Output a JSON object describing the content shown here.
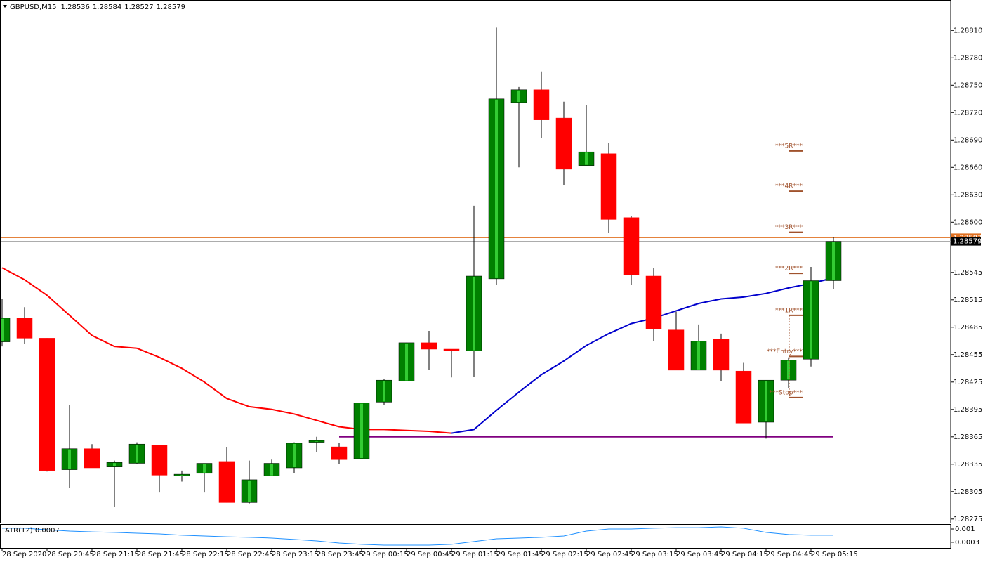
{
  "chart_data": {
    "type": "candlestick",
    "symbol": "GBPUSD,M15",
    "categories": [
      "28 Sep 2020",
      null,
      "28 Sep 20:45",
      null,
      "28 Sep 21:15",
      null,
      "28 Sep 21:45",
      null,
      "28 Sep 22:15",
      null,
      "28 Sep 22:45",
      null,
      "28 Sep 23:15",
      null,
      "28 Sep 23:45",
      null,
      "29 Sep 00:15",
      null,
      "29 Sep 00:45",
      null,
      "29 Sep 01:15",
      null,
      "29 Sep 01:45",
      null,
      "29 Sep 02:15",
      null,
      "29 Sep 02:45",
      null,
      "29 Sep 03:15",
      null,
      "29 Sep 03:45",
      null,
      "29 Sep 04:15",
      null,
      "29 Sep 04:45",
      null,
      "29 Sep 05:15",
      null
    ],
    "candles": [
      {
        "open": 1.28469,
        "high": 1.28516,
        "low": 1.28464,
        "close": 1.28495
      },
      {
        "open": 1.28495,
        "high": 1.28507,
        "low": 1.28467,
        "close": 1.28473
      },
      {
        "open": 1.28473,
        "high": 1.28473,
        "low": 1.28327,
        "close": 1.28328
      },
      {
        "open": 1.28329,
        "high": 1.284,
        "low": 1.28309,
        "close": 1.28352
      },
      {
        "open": 1.28352,
        "high": 1.28357,
        "low": 1.28331,
        "close": 1.28331
      },
      {
        "open": 1.28332,
        "high": 1.28339,
        "low": 1.28288,
        "close": 1.28337
      },
      {
        "open": 1.28336,
        "high": 1.28359,
        "low": 1.28335,
        "close": 1.28357
      },
      {
        "open": 1.28356,
        "high": 1.28356,
        "low": 1.28304,
        "close": 1.28323
      },
      {
        "open": 1.28322,
        "high": 1.28328,
        "low": 1.28316,
        "close": 1.28324
      },
      {
        "open": 1.28325,
        "high": 1.28336,
        "low": 1.28304,
        "close": 1.28336
      },
      {
        "open": 1.28338,
        "high": 1.28354,
        "low": 1.28293,
        "close": 1.28293
      },
      {
        "open": 1.28293,
        "high": 1.28339,
        "low": 1.28292,
        "close": 1.28318
      },
      {
        "open": 1.28322,
        "high": 1.2834,
        "low": 1.28322,
        "close": 1.28336
      },
      {
        "open": 1.28331,
        "high": 1.28359,
        "low": 1.28325,
        "close": 1.28358
      },
      {
        "open": 1.28359,
        "high": 1.28365,
        "low": 1.28348,
        "close": 1.28361
      },
      {
        "open": 1.28354,
        "high": 1.28358,
        "low": 1.28335,
        "close": 1.2834
      },
      {
        "open": 1.28341,
        "high": 1.28402,
        "low": 1.28341,
        "close": 1.28402
      },
      {
        "open": 1.28403,
        "high": 1.28428,
        "low": 1.284,
        "close": 1.28427
      },
      {
        "open": 1.28426,
        "high": 1.28468,
        "low": 1.28426,
        "close": 1.28468
      },
      {
        "open": 1.28468,
        "high": 1.28481,
        "low": 1.28438,
        "close": 1.28461
      },
      {
        "open": 1.28461,
        "high": 1.28461,
        "low": 1.2843,
        "close": 1.28459
      },
      {
        "open": 1.28459,
        "high": 1.28618,
        "low": 1.28431,
        "close": 1.28541
      },
      {
        "open": 1.28538,
        "high": 1.28813,
        "low": 1.28531,
        "close": 1.28735
      },
      {
        "open": 1.28731,
        "high": 1.28748,
        "low": 1.2866,
        "close": 1.28745
      },
      {
        "open": 1.28745,
        "high": 1.28765,
        "low": 1.28692,
        "close": 1.28712
      },
      {
        "open": 1.28714,
        "high": 1.28732,
        "low": 1.28641,
        "close": 1.28658
      },
      {
        "open": 1.28662,
        "high": 1.28728,
        "low": 1.28662,
        "close": 1.28677
      },
      {
        "open": 1.28675,
        "high": 1.28687,
        "low": 1.28588,
        "close": 1.28603
      },
      {
        "open": 1.28605,
        "high": 1.28607,
        "low": 1.28531,
        "close": 1.28542
      },
      {
        "open": 1.28541,
        "high": 1.2855,
        "low": 1.2847,
        "close": 1.28483
      },
      {
        "open": 1.28482,
        "high": 1.28502,
        "low": 1.28438,
        "close": 1.28438
      },
      {
        "open": 1.28438,
        "high": 1.28488,
        "low": 1.28438,
        "close": 1.2847
      },
      {
        "open": 1.28472,
        "high": 1.28478,
        "low": 1.28426,
        "close": 1.28438
      },
      {
        "open": 1.28437,
        "high": 1.28446,
        "low": 1.2838,
        "close": 1.2838
      },
      {
        "open": 1.28381,
        "high": 1.28427,
        "low": 1.28363,
        "close": 1.28427
      },
      {
        "open": 1.28427,
        "high": 1.28452,
        "low": 1.28418,
        "close": 1.28449
      },
      {
        "open": 1.2845,
        "high": 1.28551,
        "low": 1.28442,
        "close": 1.28536
      },
      {
        "open": 1.28536,
        "high": 1.28584,
        "low": 1.28527,
        "close": 1.28579
      }
    ],
    "up_color": "#008000",
    "up_highlight": "#33cc33",
    "down_color": "#ff0000",
    "ylim": [
      1.28271,
      1.28841
    ],
    "yticks": [
      {
        "value": 1.2881,
        "label": "1.28810"
      },
      {
        "value": 1.2878,
        "label": "1.28780"
      },
      {
        "value": 1.2875,
        "label": "1.28750"
      },
      {
        "value": 1.2872,
        "label": "1.28720"
      },
      {
        "value": 1.2869,
        "label": "1.28690"
      },
      {
        "value": 1.2866,
        "label": "1.28660"
      },
      {
        "value": 1.2863,
        "label": "1.28630"
      },
      {
        "value": 1.286,
        "label": "1.28600"
      },
      1.28545,
      1.28515,
      1.28485,
      1.28455,
      1.28425,
      1.28395,
      1.28365,
      1.28335,
      1.28305,
      1.28275
    ],
    "lines": [
      {
        "color": "#ff0000",
        "values": [
          1.2855,
          1.28537,
          1.2852,
          1.28498,
          1.28476,
          1.28464,
          1.28462,
          1.28452,
          1.2844,
          1.28425,
          1.28407,
          1.28398,
          1.28395,
          1.2839,
          1.28383,
          1.28376,
          1.28373,
          1.28373,
          1.28372,
          1.28371,
          1.28369,
          null,
          null,
          null,
          null,
          null,
          null,
          null,
          null,
          null,
          null,
          null,
          null,
          null,
          null,
          null,
          null,
          null
        ]
      },
      {
        "color": "#0000cc",
        "values": [
          null,
          null,
          null,
          null,
          null,
          null,
          null,
          null,
          null,
          null,
          null,
          null,
          null,
          null,
          null,
          null,
          null,
          null,
          null,
          null,
          1.28369,
          1.28373,
          1.28394,
          1.28414,
          1.28433,
          1.28448,
          1.28465,
          1.28478,
          1.28489,
          1.28495,
          1.28503,
          1.28511,
          1.28516,
          1.28518,
          1.28522,
          1.28528,
          1.28533,
          1.28539
        ]
      },
      {
        "color": "#800080",
        "values": [
          null,
          null,
          null,
          null,
          null,
          null,
          null,
          null,
          null,
          null,
          null,
          null,
          null,
          null,
          null,
          1.28365,
          1.28365,
          1.28365,
          1.28365,
          1.28365,
          1.28365,
          1.28365,
          1.28365,
          1.28365,
          1.28365,
          1.28365,
          1.28365,
          1.28365,
          1.28365,
          1.28365,
          1.28365,
          1.28365,
          1.28365,
          1.28365,
          1.28365,
          1.28365,
          1.28365,
          1.28365
        ]
      }
    ],
    "price_lines": [
      {
        "value": 1.28583,
        "color": "#e07020"
      },
      {
        "value": 1.28579,
        "color": "#a0a0a0"
      }
    ],
    "level_color": "#a0522d",
    "levels": [
      {
        "label": "***5R***",
        "value": 1.28678
      },
      {
        "label": "***4R***",
        "value": 1.28634
      },
      {
        "label": "***3R***",
        "value": 1.28589
      },
      {
        "label": "***2R***",
        "value": 1.28544
      },
      {
        "label": "***1R***",
        "value": 1.28498
      },
      {
        "label": "***Entry***",
        "value": 1.28453
      },
      {
        "label": "***Stop***",
        "value": 1.28408
      }
    ],
    "atr": {
      "label": "ATR(12) 0.0007",
      "color": "#1e90ff",
      "ylim": [
        0,
        0.00126
      ],
      "yticks": [
        0.001,
        0.0003
      ],
      "values": [
        0.00104,
        0.00104,
        0.00096,
        0.00089,
        0.00085,
        0.00082,
        0.00078,
        0.00074,
        0.00067,
        0.00063,
        0.00059,
        0.00056,
        0.00052,
        0.00045,
        0.00037,
        0.00026,
        0.00019,
        0.00015,
        0.00015,
        0.00015,
        0.00019,
        0.00034,
        0.00048,
        0.00052,
        0.00056,
        0.00063,
        0.00089,
        0.001,
        0.001,
        0.00104,
        0.00107,
        0.00107,
        0.00111,
        0.00104,
        0.00082,
        0.00071,
        0.00067,
        0.00067
      ]
    }
  }
}
